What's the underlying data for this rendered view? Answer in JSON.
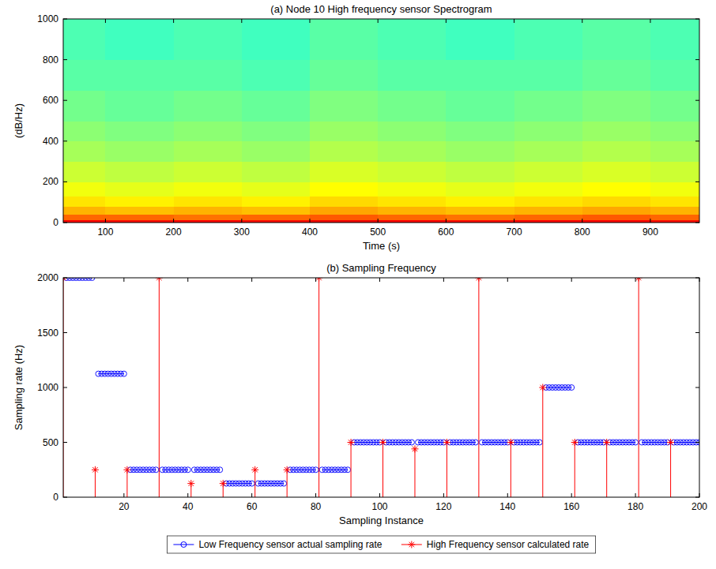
{
  "chart_data": [
    {
      "type": "heatmap",
      "title": "(a) Node 10 High frequency sensor Spectrogram",
      "xlabel": "Time (s)",
      "ylabel": "(dB/Hz)",
      "xlim": [
        38,
        972
      ],
      "xticks": [
        100,
        200,
        300,
        400,
        500,
        600,
        700,
        800,
        900
      ],
      "ylim": [
        0,
        1000
      ],
      "yticks": [
        0,
        200,
        400,
        600,
        800,
        1000
      ],
      "x_edges": [
        38,
        100,
        200,
        300,
        400,
        500,
        600,
        700,
        800,
        900,
        972
      ],
      "y_edges": [
        0,
        15,
        40,
        80,
        130,
        200,
        300,
        400,
        500,
        650,
        800,
        1000
      ],
      "clim": [
        -100,
        -20
      ],
      "cells": [
        [
          -30,
          -31,
          -30,
          -31,
          -29,
          -30,
          -31,
          -30,
          -30,
          -31
        ],
        [
          -38,
          -38,
          -39,
          -38,
          -37,
          -38,
          -39,
          -38,
          -37,
          -38
        ],
        [
          -44,
          -45,
          -44,
          -45,
          -43,
          -44,
          -45,
          -44,
          -43,
          -44
        ],
        [
          -48,
          -49,
          -48,
          -49,
          -47,
          -48,
          -49,
          -48,
          -47,
          -48
        ],
        [
          -51,
          -52,
          -51,
          -52,
          -50,
          -51,
          -52,
          -51,
          -50,
          -51
        ],
        [
          -54,
          -55,
          -54,
          -55,
          -53,
          -54,
          -55,
          -54,
          -53,
          -54
        ],
        [
          -57,
          -58,
          -57,
          -58,
          -56,
          -57,
          -58,
          -57,
          -56,
          -57
        ],
        [
          -59,
          -60,
          -59,
          -60,
          -58,
          -59,
          -60,
          -59,
          -58,
          -59
        ],
        [
          -61,
          -62,
          -61,
          -62,
          -60,
          -61,
          -62,
          -61,
          -60,
          -61
        ],
        [
          -63,
          -63,
          -63,
          -64,
          -62,
          -63,
          -63,
          -63,
          -62,
          -63
        ],
        [
          -64,
          -65,
          -64,
          -65,
          -63,
          -64,
          -65,
          -64,
          -63,
          -64
        ]
      ],
      "grid": false
    },
    {
      "type": "line",
      "title": "(b) Sampling Frequency",
      "xlabel": "Sampling Instance",
      "ylabel": "Sampling rate (Hz)",
      "xlim": [
        1,
        200
      ],
      "xticks": [
        20,
        40,
        60,
        80,
        100,
        120,
        140,
        160,
        180,
        200
      ],
      "ylim": [
        0,
        2000
      ],
      "yticks": [
        0,
        500,
        1000,
        1500,
        2000
      ],
      "grid": false,
      "legend": "bottom",
      "series": [
        {
          "name": "Low Frequency sensor actual sampling rate",
          "color": "#0000ff",
          "marker": "circle",
          "line_style": "solid",
          "x": [
            1,
            2,
            3,
            4,
            5,
            6,
            7,
            8,
            9,
            10,
            11,
            12,
            13,
            14,
            15,
            16,
            17,
            18,
            19,
            20,
            21,
            22,
            23,
            24,
            25,
            26,
            27,
            28,
            29,
            30,
            31,
            32,
            33,
            34,
            35,
            36,
            37,
            38,
            39,
            40,
            41,
            42,
            43,
            44,
            45,
            46,
            47,
            48,
            49,
            50,
            51,
            52,
            53,
            54,
            55,
            56,
            57,
            58,
            59,
            60,
            61,
            62,
            63,
            64,
            65,
            66,
            67,
            68,
            69,
            70,
            71,
            72,
            73,
            74,
            75,
            76,
            77,
            78,
            79,
            80,
            81,
            82,
            83,
            84,
            85,
            86,
            87,
            88,
            89,
            90,
            91,
            92,
            93,
            94,
            95,
            96,
            97,
            98,
            99,
            100,
            101,
            102,
            103,
            104,
            105,
            106,
            107,
            108,
            109,
            110,
            111,
            112,
            113,
            114,
            115,
            116,
            117,
            118,
            119,
            120,
            121,
            122,
            123,
            124,
            125,
            126,
            127,
            128,
            129,
            130,
            131,
            132,
            133,
            134,
            135,
            136,
            137,
            138,
            139,
            140,
            141,
            142,
            143,
            144,
            145,
            146,
            147,
            148,
            149,
            150,
            151,
            152,
            153,
            154,
            155,
            156,
            157,
            158,
            159,
            160,
            161,
            162,
            163,
            164,
            165,
            166,
            167,
            168,
            169,
            170,
            171,
            172,
            173,
            174,
            175,
            176,
            177,
            178,
            179,
            180,
            181,
            182,
            183,
            184,
            185,
            186,
            187,
            188,
            189,
            190,
            191,
            192,
            193,
            194,
            195,
            196,
            197,
            198,
            199,
            200
          ],
          "values": [
            null,
            2000,
            2000,
            2000,
            2000,
            2000,
            2000,
            2000,
            2000,
            2000,
            null,
            1125,
            1125,
            1125,
            1125,
            1125,
            1125,
            1125,
            1125,
            1125,
            null,
            250,
            250,
            250,
            250,
            250,
            250,
            250,
            250,
            250,
            null,
            250,
            250,
            250,
            250,
            250,
            250,
            250,
            250,
            250,
            null,
            250,
            250,
            250,
            250,
            250,
            250,
            250,
            250,
            250,
            null,
            125,
            125,
            125,
            125,
            125,
            125,
            125,
            125,
            125,
            null,
            125,
            125,
            125,
            125,
            125,
            125,
            125,
            125,
            125,
            null,
            250,
            250,
            250,
            250,
            250,
            250,
            250,
            250,
            250,
            null,
            250,
            250,
            250,
            250,
            250,
            250,
            250,
            250,
            250,
            null,
            500,
            500,
            500,
            500,
            500,
            500,
            500,
            500,
            500,
            null,
            500,
            500,
            500,
            500,
            500,
            500,
            500,
            500,
            500,
            null,
            500,
            500,
            500,
            500,
            500,
            500,
            500,
            500,
            500,
            null,
            500,
            500,
            500,
            500,
            500,
            500,
            500,
            500,
            500,
            null,
            500,
            500,
            500,
            500,
            500,
            500,
            500,
            500,
            500,
            null,
            500,
            500,
            500,
            500,
            500,
            500,
            500,
            500,
            500,
            null,
            1000,
            1000,
            1000,
            1000,
            1000,
            1000,
            1000,
            1000,
            1000,
            null,
            500,
            500,
            500,
            500,
            500,
            500,
            500,
            500,
            500,
            null,
            500,
            500,
            500,
            500,
            500,
            500,
            500,
            500,
            500,
            null,
            500,
            500,
            500,
            500,
            500,
            500,
            500,
            500,
            500,
            null,
            500,
            500,
            500,
            500,
            500,
            500,
            500,
            500,
            500
          ]
        },
        {
          "name": "High Frequency sensor calculated rate",
          "type": "stem",
          "color": "#ff0000",
          "marker": "star",
          "line_style": "solid",
          "x": [
            1,
            11,
            21,
            31,
            41,
            51,
            61,
            71,
            81,
            91,
            101,
            111,
            121,
            131,
            141,
            151,
            161,
            171,
            181,
            191
          ],
          "values": [
            2000,
            250,
            250,
            2000,
            125,
            125,
            250,
            250,
            2000,
            500,
            500,
            440,
            500,
            2000,
            500,
            1000,
            500,
            500,
            2000,
            500
          ]
        }
      ]
    }
  ]
}
